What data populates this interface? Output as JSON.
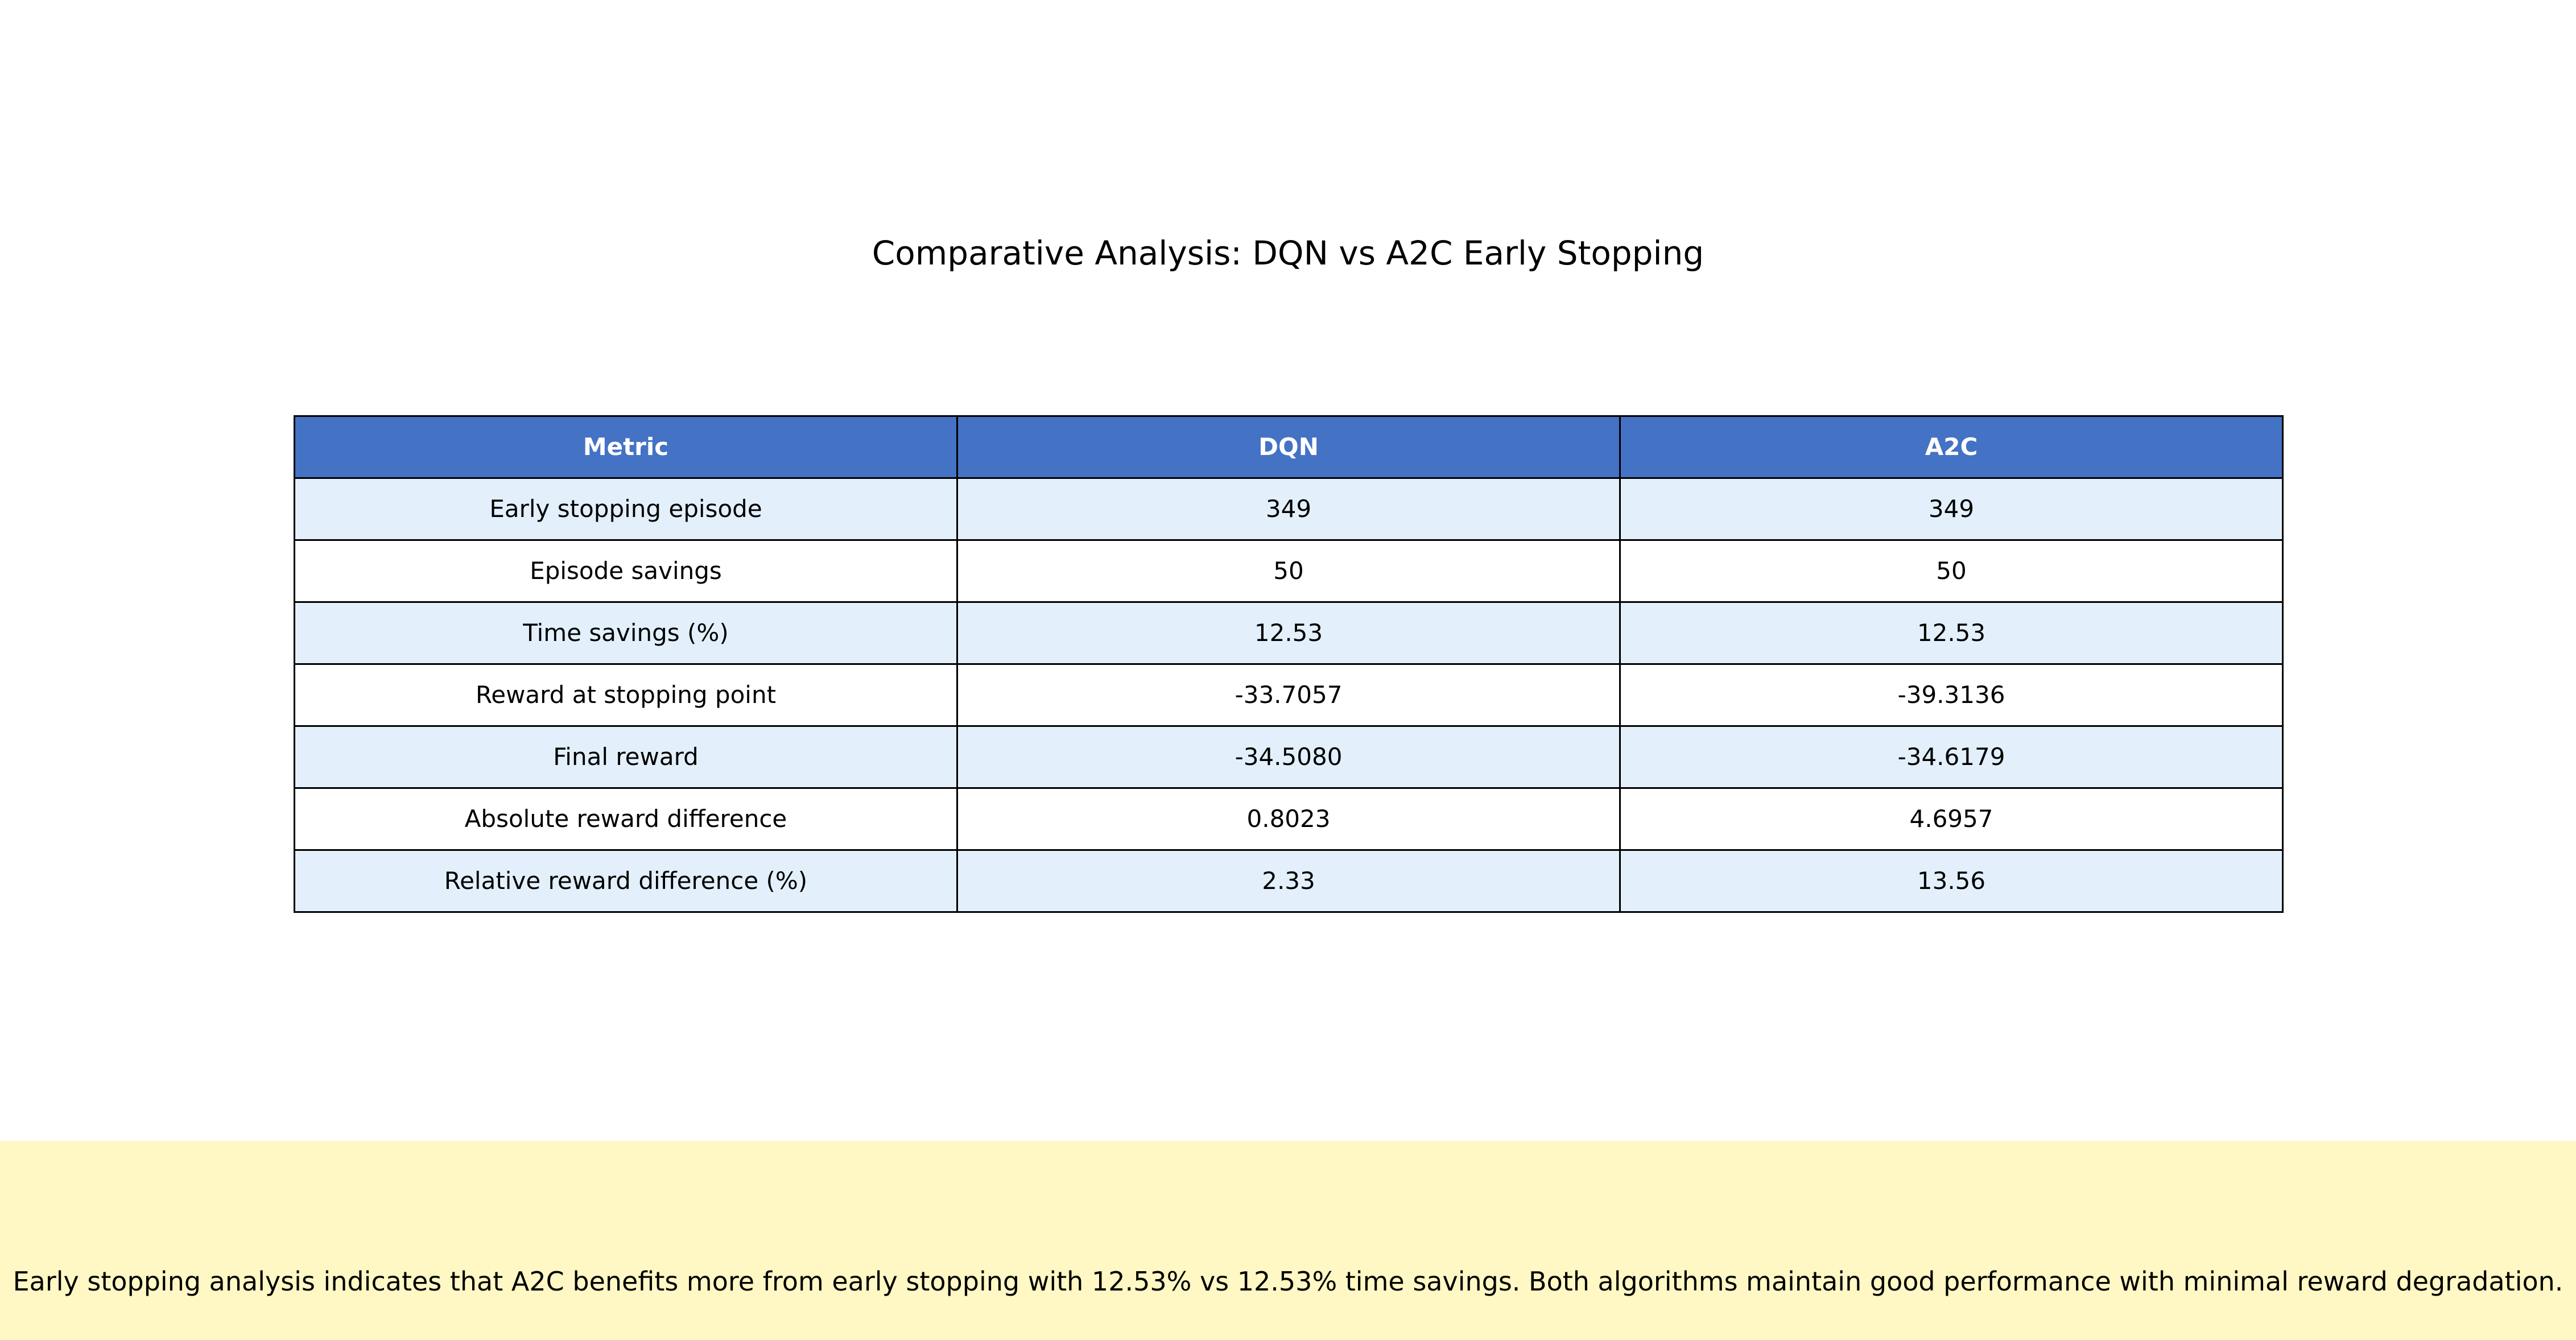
{
  "chart_data": {
    "type": "table",
    "title": "Comparative Analysis: DQN vs A2C Early Stopping",
    "columns": [
      "Metric",
      "DQN",
      "A2C"
    ],
    "rows": [
      [
        "Early stopping episode",
        "349",
        "349"
      ],
      [
        "Episode savings",
        "50",
        "50"
      ],
      [
        "Time savings (%)",
        "12.53",
        "12.53"
      ],
      [
        "Reward at stopping point",
        "-33.7057",
        "-39.3136"
      ],
      [
        "Final reward",
        "-34.5080",
        "-34.6179"
      ],
      [
        "Absolute reward difference",
        "0.8023",
        "4.6957"
      ],
      [
        "Relative reward difference (%)",
        "2.33",
        "13.56"
      ]
    ],
    "summary": "Early stopping analysis indicates that A2C benefits more from early stopping with 12.53% vs 12.53% time savings. Both algorithms maintain good performance with minimal reward degradation."
  },
  "colors": {
    "header_background": "#4472c4",
    "header_text": "#ffffff",
    "row_alt_background": "#e3f0fc",
    "summary_background": "#fff8c4"
  }
}
